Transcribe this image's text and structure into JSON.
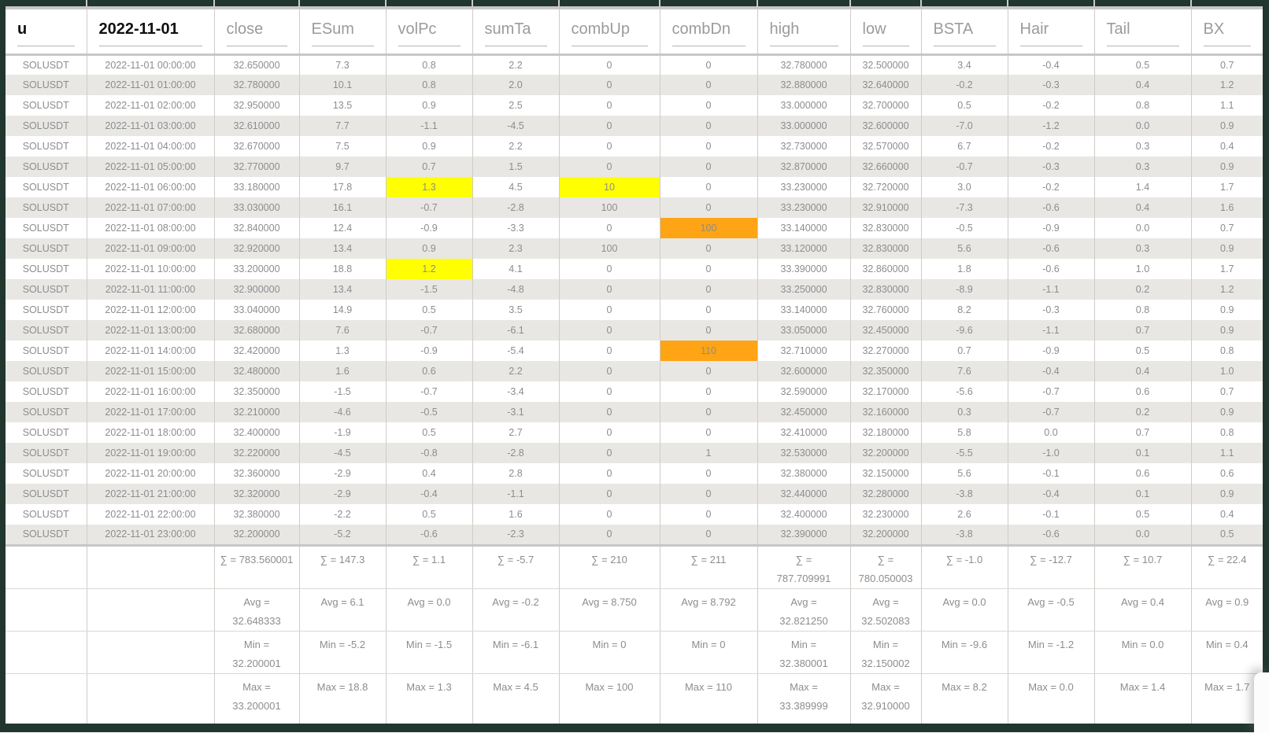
{
  "table": {
    "columns": [
      "u",
      "2022-11-01",
      "close",
      "ESum",
      "volPc",
      "sumTa",
      "combUp",
      "combDn",
      "high",
      "low",
      "BSTA",
      "Hair",
      "Tail",
      "BX"
    ],
    "emphasized_columns": [
      0,
      1
    ],
    "rows": [
      [
        "SOLUSDT",
        "2022-11-01 00:00:00",
        "32.650000",
        "7.3",
        "0.8",
        "2.2",
        "0",
        "0",
        "32.780000",
        "32.500000",
        "3.4",
        "-0.4",
        "0.5",
        "0.7"
      ],
      [
        "SOLUSDT",
        "2022-11-01 01:00:00",
        "32.780000",
        "10.1",
        "0.8",
        "2.0",
        "0",
        "0",
        "32.880000",
        "32.640000",
        "-0.2",
        "-0.3",
        "0.4",
        "1.2"
      ],
      [
        "SOLUSDT",
        "2022-11-01 02:00:00",
        "32.950000",
        "13.5",
        "0.9",
        "2.5",
        "0",
        "0",
        "33.000000",
        "32.700000",
        "0.5",
        "-0.2",
        "0.8",
        "1.1"
      ],
      [
        "SOLUSDT",
        "2022-11-01 03:00:00",
        "32.610000",
        "7.7",
        "-1.1",
        "-4.5",
        "0",
        "0",
        "33.000000",
        "32.600000",
        "-7.0",
        "-1.2",
        "0.0",
        "0.9"
      ],
      [
        "SOLUSDT",
        "2022-11-01 04:00:00",
        "32.670000",
        "7.5",
        "0.9",
        "2.2",
        "0",
        "0",
        "32.730000",
        "32.570000",
        "6.7",
        "-0.2",
        "0.3",
        "0.4"
      ],
      [
        "SOLUSDT",
        "2022-11-01 05:00:00",
        "32.770000",
        "9.7",
        "0.7",
        "1.5",
        "0",
        "0",
        "32.870000",
        "32.660000",
        "-0.7",
        "-0.3",
        "0.3",
        "0.9"
      ],
      [
        "SOLUSDT",
        "2022-11-01 06:00:00",
        "33.180000",
        "17.8",
        "1.3",
        "4.5",
        "10",
        "0",
        "33.230000",
        "32.720000",
        "3.0",
        "-0.2",
        "1.4",
        "1.7"
      ],
      [
        "SOLUSDT",
        "2022-11-01 07:00:00",
        "33.030000",
        "16.1",
        "-0.7",
        "-2.8",
        "100",
        "0",
        "33.230000",
        "32.910000",
        "-7.3",
        "-0.6",
        "0.4",
        "1.6"
      ],
      [
        "SOLUSDT",
        "2022-11-01 08:00:00",
        "32.840000",
        "12.4",
        "-0.9",
        "-3.3",
        "0",
        "100",
        "33.140000",
        "32.830000",
        "-0.5",
        "-0.9",
        "0.0",
        "0.7"
      ],
      [
        "SOLUSDT",
        "2022-11-01 09:00:00",
        "32.920000",
        "13.4",
        "0.9",
        "2.3",
        "100",
        "0",
        "33.120000",
        "32.830000",
        "5.6",
        "-0.6",
        "0.3",
        "0.9"
      ],
      [
        "SOLUSDT",
        "2022-11-01 10:00:00",
        "33.200000",
        "18.8",
        "1.2",
        "4.1",
        "0",
        "0",
        "33.390000",
        "32.860000",
        "1.8",
        "-0.6",
        "1.0",
        "1.7"
      ],
      [
        "SOLUSDT",
        "2022-11-01 11:00:00",
        "32.900000",
        "13.4",
        "-1.5",
        "-4.8",
        "0",
        "0",
        "33.250000",
        "32.830000",
        "-8.9",
        "-1.1",
        "0.2",
        "1.2"
      ],
      [
        "SOLUSDT",
        "2022-11-01 12:00:00",
        "33.040000",
        "14.9",
        "0.5",
        "3.5",
        "0",
        "0",
        "33.140000",
        "32.760000",
        "8.2",
        "-0.3",
        "0.8",
        "0.9"
      ],
      [
        "SOLUSDT",
        "2022-11-01 13:00:00",
        "32.680000",
        "7.6",
        "-0.7",
        "-6.1",
        "0",
        "0",
        "33.050000",
        "32.450000",
        "-9.6",
        "-1.1",
        "0.7",
        "0.9"
      ],
      [
        "SOLUSDT",
        "2022-11-01 14:00:00",
        "32.420000",
        "1.3",
        "-0.9",
        "-5.4",
        "0",
        "110",
        "32.710000",
        "32.270000",
        "0.7",
        "-0.9",
        "0.5",
        "0.8"
      ],
      [
        "SOLUSDT",
        "2022-11-01 15:00:00",
        "32.480000",
        "1.6",
        "0.6",
        "2.2",
        "0",
        "0",
        "32.600000",
        "32.350000",
        "7.6",
        "-0.4",
        "0.4",
        "1.0"
      ],
      [
        "SOLUSDT",
        "2022-11-01 16:00:00",
        "32.350000",
        "-1.5",
        "-0.7",
        "-3.4",
        "0",
        "0",
        "32.590000",
        "32.170000",
        "-5.6",
        "-0.7",
        "0.6",
        "0.7"
      ],
      [
        "SOLUSDT",
        "2022-11-01 17:00:00",
        "32.210000",
        "-4.6",
        "-0.5",
        "-3.1",
        "0",
        "0",
        "32.450000",
        "32.160000",
        "0.3",
        "-0.7",
        "0.2",
        "0.9"
      ],
      [
        "SOLUSDT",
        "2022-11-01 18:00:00",
        "32.400000",
        "-1.9",
        "0.5",
        "2.7",
        "0",
        "0",
        "32.410000",
        "32.180000",
        "5.8",
        "0.0",
        "0.7",
        "0.8"
      ],
      [
        "SOLUSDT",
        "2022-11-01 19:00:00",
        "32.220000",
        "-4.5",
        "-0.8",
        "-2.8",
        "0",
        "1",
        "32.530000",
        "32.200000",
        "-5.5",
        "-1.0",
        "0.1",
        "1.1"
      ],
      [
        "SOLUSDT",
        "2022-11-01 20:00:00",
        "32.360000",
        "-2.9",
        "0.4",
        "2.8",
        "0",
        "0",
        "32.380000",
        "32.150000",
        "5.6",
        "-0.1",
        "0.6",
        "0.6"
      ],
      [
        "SOLUSDT",
        "2022-11-01 21:00:00",
        "32.320000",
        "-2.9",
        "-0.4",
        "-1.1",
        "0",
        "0",
        "32.440000",
        "32.280000",
        "-3.8",
        "-0.4",
        "0.1",
        "0.9"
      ],
      [
        "SOLUSDT",
        "2022-11-01 22:00:00",
        "32.380000",
        "-2.2",
        "0.5",
        "1.6",
        "0",
        "0",
        "32.400000",
        "32.230000",
        "2.6",
        "-0.1",
        "0.5",
        "0.4"
      ],
      [
        "SOLUSDT",
        "2022-11-01 23:00:00",
        "32.200000",
        "-5.2",
        "-0.6",
        "-2.3",
        "0",
        "0",
        "32.390000",
        "32.200000",
        "-3.8",
        "-0.6",
        "0.0",
        "0.5"
      ]
    ],
    "row_highlights": {
      "6": {
        "4": "yellow",
        "6": "yellow"
      },
      "7": {
        "6": "green"
      },
      "8": {
        "7": "orange"
      },
      "9": {
        "6": "green"
      },
      "10": {
        "4": "yellow"
      },
      "14": {
        "7": "orange"
      },
      "19": {
        "7": "orange"
      }
    },
    "summary_rows": [
      {
        "name": "sum",
        "values": [
          "∑ = 783.560001",
          "∑ = 147.3",
          "∑ = 1.1",
          "∑ = -5.7",
          "∑ = 210",
          "∑ = 211",
          "∑ =\n787.709991",
          "∑ =\n780.050003",
          "∑ = -1.0",
          "∑ = -12.7",
          "∑ = 10.7",
          "∑ = 22.4"
        ]
      },
      {
        "name": "avg",
        "values": [
          "Avg =\n32.648333",
          "Avg = 6.1",
          "Avg = 0.0",
          "Avg = -0.2",
          "Avg = 8.750",
          "Avg = 8.792",
          "Avg =\n32.821250",
          "Avg =\n32.502083",
          "Avg = 0.0",
          "Avg = -0.5",
          "Avg = 0.4",
          "Avg = 0.9"
        ]
      },
      {
        "name": "min",
        "values": [
          "Min =\n32.200001",
          "Min = -5.2",
          "Min = -1.5",
          "Min = -6.1",
          "Min = 0",
          "Min = 0",
          "Min =\n32.380001",
          "Min =\n32.150002",
          "Min = -9.6",
          "Min = -1.2",
          "Min = 0.0",
          "Min = 0.4"
        ]
      },
      {
        "name": "max",
        "values": [
          "Max =\n33.200001",
          "Max = 18.8",
          "Max = 1.3",
          "Max = 4.5",
          "Max = 100",
          "Max = 110",
          "Max =\n33.389999",
          "Max =\n32.910000",
          "Max = 8.2",
          "Max = 0.0",
          "Max = 1.4",
          "Max = 1.7"
        ]
      }
    ],
    "colors": {
      "band": "#20362f",
      "separator": "#c7c7c7",
      "grid": "#cfccc8",
      "zebra": "#e9e7e4",
      "text": "#8d8d8d",
      "header_text": "#9b9b9b",
      "header_text_emphasis": "#111111",
      "highlight_yellow": "#ffff00",
      "highlight_green": "#00e213",
      "highlight_orange": "#ffa414"
    }
  }
}
